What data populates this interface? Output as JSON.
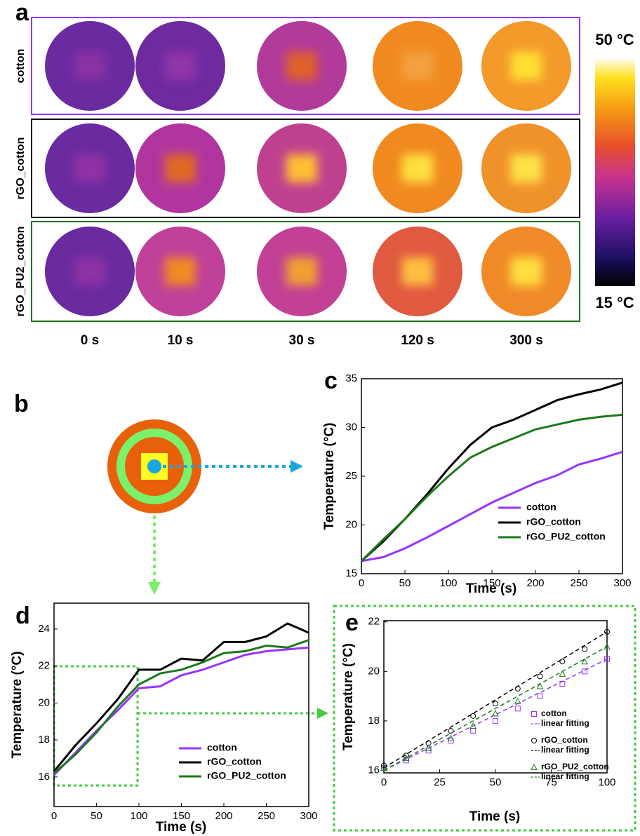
{
  "panel_a": {
    "label": "a",
    "rows": [
      "cotton",
      "rGO_cotton",
      "rGO_PU2_cotton"
    ],
    "times": [
      "0 s",
      "10 s",
      "30 s",
      "120 s",
      "300 s"
    ],
    "colorbar_max": "50 °C",
    "colorbar_min": "15 °C"
  },
  "panel_b": {
    "label": "b"
  },
  "chart_data": [
    {
      "type": "line",
      "label": "c",
      "xlabel": "Time (s)",
      "ylabel": "Temperature (°C)",
      "x": [
        0,
        25,
        50,
        75,
        100,
        125,
        150,
        175,
        200,
        225,
        250,
        275,
        300
      ],
      "xlim": [
        0,
        300
      ],
      "xticks": [
        0,
        50,
        100,
        150,
        200,
        250,
        300
      ],
      "ylim": [
        15,
        35
      ],
      "yticks": [
        15,
        20,
        25,
        30,
        35
      ],
      "legend": "lower right",
      "series": [
        {
          "name": "cotton",
          "color": "#9933ff",
          "values": [
            16.3,
            16.7,
            17.6,
            18.7,
            19.9,
            21.1,
            22.3,
            23.3,
            24.3,
            25.1,
            26.2,
            26.8,
            27.5
          ]
        },
        {
          "name": "rGO_cotton",
          "color": "#000000",
          "values": [
            16.3,
            18.3,
            20.6,
            23.1,
            25.8,
            28.2,
            30.0,
            30.8,
            31.8,
            32.8,
            33.4,
            33.9,
            34.6
          ]
        },
        {
          "name": "rGO_PU2_cotton",
          "color": "#1a7a1a",
          "values": [
            16.3,
            18.5,
            20.6,
            22.9,
            25.0,
            26.9,
            28.0,
            28.9,
            29.8,
            30.3,
            30.8,
            31.1,
            31.3
          ]
        }
      ]
    },
    {
      "type": "line",
      "label": "d",
      "xlabel": "Time (s)",
      "ylabel": "Temperature (°C)",
      "x": [
        0,
        25,
        50,
        75,
        100,
        125,
        150,
        175,
        200,
        225,
        250,
        275,
        300
      ],
      "xlim": [
        0,
        300
      ],
      "xticks": [
        0,
        50,
        100,
        150,
        200,
        250,
        300
      ],
      "ylim": [
        14.4,
        25.4
      ],
      "yticks": [
        16,
        18,
        20,
        22,
        24
      ],
      "legend": "lower right",
      "series": [
        {
          "name": "cotton",
          "color": "#9933ff",
          "values": [
            16.1,
            17.3,
            18.5,
            19.6,
            20.8,
            20.9,
            21.5,
            21.8,
            22.2,
            22.6,
            22.8,
            22.9,
            23.0
          ]
        },
        {
          "name": "rGO_cotton",
          "color": "#000000",
          "values": [
            16.3,
            17.7,
            18.9,
            20.2,
            21.8,
            21.8,
            22.4,
            22.3,
            23.3,
            23.3,
            23.6,
            24.3,
            23.8
          ]
        },
        {
          "name": "rGO_PU2_cotton",
          "color": "#1a7a1a",
          "values": [
            16.2,
            17.2,
            18.4,
            19.8,
            21.0,
            21.6,
            21.8,
            22.2,
            22.7,
            22.8,
            23.1,
            23.0,
            23.4
          ]
        }
      ]
    },
    {
      "type": "line",
      "label": "e",
      "xlabel": "Time (s)",
      "ylabel": "Temperature (°C)",
      "x": [
        0,
        10,
        20,
        30,
        40,
        50,
        60,
        70,
        80,
        90,
        100
      ],
      "xlim": [
        0,
        100
      ],
      "xticks": [
        0,
        25,
        50,
        75,
        100
      ],
      "ylim": [
        15.9,
        22.05
      ],
      "yticks": [
        16,
        18,
        20,
        22
      ],
      "legend": "lower right",
      "series": [
        {
          "name": "cotton",
          "color": "#9933ff",
          "marker": "square",
          "values": [
            16.1,
            16.4,
            16.8,
            17.2,
            17.6,
            18.0,
            18.5,
            19.0,
            19.5,
            20.0,
            20.5
          ]
        },
        {
          "name": "linear fitting",
          "color": "#9933ff",
          "dash": true,
          "x": [
            0,
            100
          ],
          "values": [
            16.0,
            20.5
          ]
        },
        {
          "name": "rGO_cotton",
          "color": "#000000",
          "marker": "circle",
          "values": [
            16.2,
            16.6,
            17.1,
            17.6,
            18.2,
            18.7,
            19.3,
            19.8,
            20.4,
            20.9,
            21.6
          ]
        },
        {
          "name": "linear fitting",
          "color": "#000000",
          "dash": true,
          "x": [
            0,
            100
          ],
          "values": [
            16.1,
            21.6
          ]
        },
        {
          "name": "rGO_PU2_cotton",
          "color": "#1a7a1a",
          "marker": "triangle",
          "values": [
            16.1,
            16.5,
            16.9,
            17.3,
            17.8,
            18.3,
            18.8,
            19.4,
            19.9,
            20.4,
            21.0
          ]
        },
        {
          "name": "linear fitting",
          "color": "#1a7a1a",
          "dash": true,
          "x": [
            0,
            100
          ],
          "values": [
            16.0,
            21.0
          ]
        }
      ]
    }
  ]
}
